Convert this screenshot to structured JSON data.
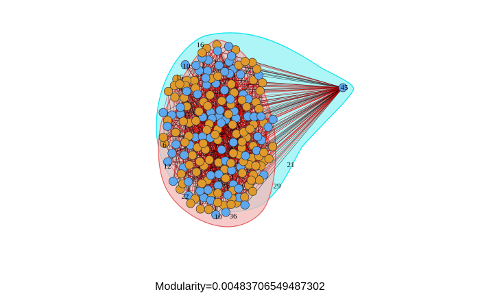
{
  "caption": "Modularity=0.00483706549487302",
  "communities": [
    {
      "fill": "#9ff3f5",
      "stroke": "#00e5ee",
      "node_color": "#5ea8f0"
    },
    {
      "fill": "#f4b8b8",
      "stroke": "#e06060",
      "node_color": "#e09a2c"
    }
  ],
  "edge_colors": {
    "within": "#000000",
    "between": "#e00000"
  },
  "hub_node": {
    "label": "45"
  },
  "visible_node_labels": [
    "16",
    "15",
    "10",
    "12",
    "6",
    "22",
    "21",
    "29",
    "10",
    "36",
    "45"
  ]
}
